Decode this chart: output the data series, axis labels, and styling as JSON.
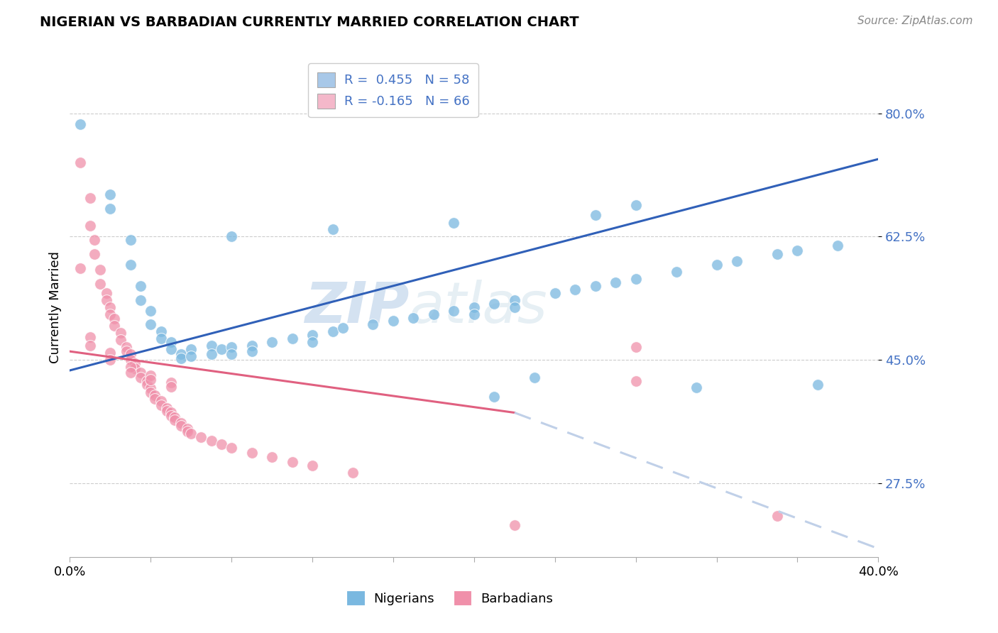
{
  "title": "NIGERIAN VS BARBADIAN CURRENTLY MARRIED CORRELATION CHART",
  "source": "Source: ZipAtlas.com",
  "ylabel": "Currently Married",
  "ytick_labels": [
    "80.0%",
    "62.5%",
    "45.0%",
    "27.5%"
  ],
  "ytick_positions": [
    0.8,
    0.625,
    0.45,
    0.275
  ],
  "xlim": [
    0.0,
    0.4
  ],
  "ylim": [
    0.17,
    0.88
  ],
  "legend_entries": [
    {
      "label": "R =  0.455   N = 58",
      "color": "#a8c8e8"
    },
    {
      "label": "R = -0.165   N = 66",
      "color": "#f4b8ca"
    }
  ],
  "legend_label_nigerians": "Nigerians",
  "legend_label_barbadians": "Barbadians",
  "watermark_zip": "ZIP",
  "watermark_atlas": "atlas",
  "nigerian_color": "#7ab8e0",
  "barbadian_color": "#f090aa",
  "nigerian_line_color": "#3060b8",
  "barbadian_line_solid_color": "#e06080",
  "barbadian_line_dash_color": "#c0d0e8",
  "nig_line_x0": 0.0,
  "nig_line_y0": 0.435,
  "nig_line_x1": 0.4,
  "nig_line_y1": 0.735,
  "barb_line_x0": 0.0,
  "barb_line_y0": 0.462,
  "barb_line_x1_solid": 0.22,
  "barb_line_y1_solid": 0.375,
  "barb_line_x2": 0.4,
  "barb_line_y2": 0.182,
  "nigerian_data": [
    [
      0.005,
      0.785
    ],
    [
      0.02,
      0.665
    ],
    [
      0.02,
      0.685
    ],
    [
      0.03,
      0.62
    ],
    [
      0.03,
      0.585
    ],
    [
      0.035,
      0.555
    ],
    [
      0.035,
      0.535
    ],
    [
      0.04,
      0.52
    ],
    [
      0.04,
      0.5
    ],
    [
      0.045,
      0.49
    ],
    [
      0.045,
      0.48
    ],
    [
      0.05,
      0.475
    ],
    [
      0.05,
      0.465
    ],
    [
      0.055,
      0.458
    ],
    [
      0.055,
      0.452
    ],
    [
      0.06,
      0.465
    ],
    [
      0.06,
      0.455
    ],
    [
      0.07,
      0.47
    ],
    [
      0.07,
      0.458
    ],
    [
      0.075,
      0.465
    ],
    [
      0.08,
      0.468
    ],
    [
      0.08,
      0.458
    ],
    [
      0.09,
      0.47
    ],
    [
      0.09,
      0.462
    ],
    [
      0.1,
      0.475
    ],
    [
      0.11,
      0.48
    ],
    [
      0.12,
      0.485
    ],
    [
      0.12,
      0.475
    ],
    [
      0.13,
      0.49
    ],
    [
      0.135,
      0.495
    ],
    [
      0.15,
      0.5
    ],
    [
      0.16,
      0.505
    ],
    [
      0.17,
      0.51
    ],
    [
      0.18,
      0.515
    ],
    [
      0.19,
      0.52
    ],
    [
      0.2,
      0.525
    ],
    [
      0.2,
      0.515
    ],
    [
      0.21,
      0.53
    ],
    [
      0.22,
      0.535
    ],
    [
      0.22,
      0.525
    ],
    [
      0.24,
      0.545
    ],
    [
      0.25,
      0.55
    ],
    [
      0.26,
      0.555
    ],
    [
      0.27,
      0.56
    ],
    [
      0.28,
      0.565
    ],
    [
      0.3,
      0.575
    ],
    [
      0.32,
      0.585
    ],
    [
      0.33,
      0.59
    ],
    [
      0.35,
      0.6
    ],
    [
      0.36,
      0.605
    ],
    [
      0.38,
      0.612
    ],
    [
      0.08,
      0.625
    ],
    [
      0.13,
      0.635
    ],
    [
      0.19,
      0.645
    ],
    [
      0.26,
      0.656
    ],
    [
      0.28,
      0.67
    ],
    [
      0.31,
      0.411
    ],
    [
      0.21,
      0.398
    ],
    [
      0.23,
      0.425
    ],
    [
      0.37,
      0.415
    ]
  ],
  "barbadian_data": [
    [
      0.005,
      0.73
    ],
    [
      0.01,
      0.68
    ],
    [
      0.01,
      0.64
    ],
    [
      0.012,
      0.62
    ],
    [
      0.012,
      0.6
    ],
    [
      0.015,
      0.578
    ],
    [
      0.015,
      0.558
    ],
    [
      0.018,
      0.545
    ],
    [
      0.018,
      0.535
    ],
    [
      0.02,
      0.525
    ],
    [
      0.02,
      0.515
    ],
    [
      0.022,
      0.508
    ],
    [
      0.022,
      0.498
    ],
    [
      0.025,
      0.488
    ],
    [
      0.025,
      0.478
    ],
    [
      0.028,
      0.468
    ],
    [
      0.028,
      0.462
    ],
    [
      0.03,
      0.458
    ],
    [
      0.03,
      0.45
    ],
    [
      0.032,
      0.445
    ],
    [
      0.032,
      0.438
    ],
    [
      0.035,
      0.432
    ],
    [
      0.035,
      0.425
    ],
    [
      0.038,
      0.42
    ],
    [
      0.038,
      0.415
    ],
    [
      0.04,
      0.41
    ],
    [
      0.04,
      0.404
    ],
    [
      0.042,
      0.4
    ],
    [
      0.042,
      0.395
    ],
    [
      0.045,
      0.392
    ],
    [
      0.045,
      0.386
    ],
    [
      0.048,
      0.382
    ],
    [
      0.048,
      0.378
    ],
    [
      0.05,
      0.375
    ],
    [
      0.05,
      0.37
    ],
    [
      0.052,
      0.368
    ],
    [
      0.052,
      0.364
    ],
    [
      0.055,
      0.36
    ],
    [
      0.055,
      0.356
    ],
    [
      0.058,
      0.352
    ],
    [
      0.058,
      0.348
    ],
    [
      0.06,
      0.345
    ],
    [
      0.065,
      0.34
    ],
    [
      0.07,
      0.335
    ],
    [
      0.075,
      0.33
    ],
    [
      0.08,
      0.325
    ],
    [
      0.09,
      0.318
    ],
    [
      0.1,
      0.312
    ],
    [
      0.11,
      0.305
    ],
    [
      0.12,
      0.3
    ],
    [
      0.14,
      0.29
    ],
    [
      0.01,
      0.482
    ],
    [
      0.01,
      0.47
    ],
    [
      0.02,
      0.46
    ],
    [
      0.02,
      0.45
    ],
    [
      0.03,
      0.44
    ],
    [
      0.03,
      0.432
    ],
    [
      0.04,
      0.428
    ],
    [
      0.04,
      0.422
    ],
    [
      0.05,
      0.418
    ],
    [
      0.05,
      0.412
    ],
    [
      0.22,
      0.215
    ],
    [
      0.28,
      0.42
    ],
    [
      0.005,
      0.58
    ],
    [
      0.28,
      0.468
    ],
    [
      0.35,
      0.228
    ]
  ]
}
